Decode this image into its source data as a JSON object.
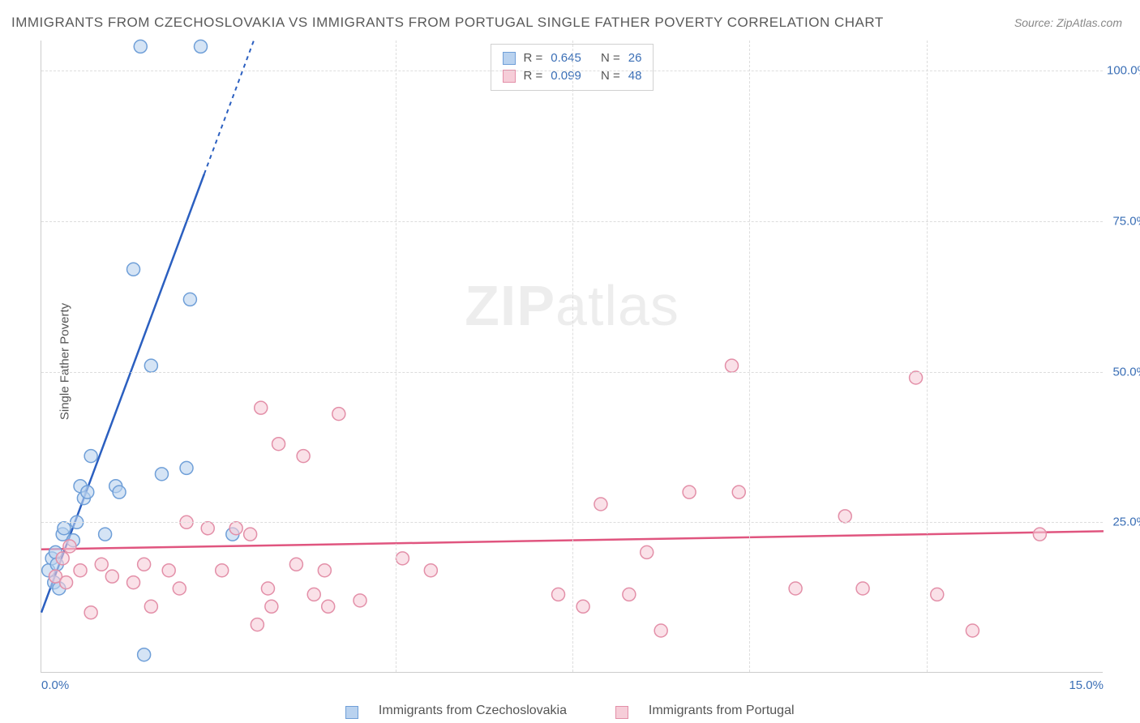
{
  "title": "IMMIGRANTS FROM CZECHOSLOVAKIA VS IMMIGRANTS FROM PORTUGAL SINGLE FATHER POVERTY CORRELATION CHART",
  "source": "Source: ZipAtlas.com",
  "ylabel": "Single Father Poverty",
  "watermark_a": "ZIP",
  "watermark_b": "atlas",
  "chart": {
    "type": "scatter",
    "background_color": "#ffffff",
    "grid_color": "#dddddd",
    "axis_color": "#cccccc",
    "tick_color": "#3b6fb6",
    "label_color": "#555555",
    "xlim": [
      0,
      15
    ],
    "ylim": [
      0,
      105
    ],
    "yticks": [
      25,
      50,
      75,
      100
    ],
    "ytick_labels": [
      "25.0%",
      "50.0%",
      "75.0%",
      "100.0%"
    ],
    "xticks_minor": [
      5,
      7.5,
      10,
      12.5
    ],
    "xtick_left": "0.0%",
    "xtick_right": "15.0%",
    "marker_radius": 8,
    "marker_stroke": 1.5
  },
  "series": [
    {
      "name": "Immigrants from Czechoslovakia",
      "color_fill": "#b9d2ef",
      "color_stroke": "#6f9fd8",
      "line_color": "#2b5fc0",
      "R": "0.645",
      "N": "26",
      "trend": {
        "x1": 0,
        "y1": 10,
        "x2": 3.0,
        "y2": 105,
        "dash_after_x": 2.3
      },
      "points": [
        [
          0.1,
          17
        ],
        [
          0.15,
          19
        ],
        [
          0.18,
          15
        ],
        [
          0.2,
          20
        ],
        [
          0.22,
          18
        ],
        [
          0.25,
          14
        ],
        [
          0.3,
          23
        ],
        [
          0.32,
          24
        ],
        [
          0.45,
          22
        ],
        [
          0.5,
          25
        ],
        [
          0.55,
          31
        ],
        [
          0.6,
          29
        ],
        [
          0.65,
          30
        ],
        [
          0.7,
          36
        ],
        [
          0.9,
          23
        ],
        [
          1.05,
          31
        ],
        [
          1.1,
          30
        ],
        [
          1.3,
          67
        ],
        [
          1.4,
          104
        ],
        [
          1.45,
          3
        ],
        [
          1.55,
          51
        ],
        [
          1.7,
          33
        ],
        [
          2.05,
          34
        ],
        [
          2.1,
          62
        ],
        [
          2.25,
          104
        ],
        [
          2.7,
          23
        ]
      ]
    },
    {
      "name": "Immigrants from Portugal",
      "color_fill": "#f6cdd8",
      "color_stroke": "#e38fa8",
      "line_color": "#e0557f",
      "R": "0.099",
      "N": "48",
      "trend": {
        "x1": 0,
        "y1": 20.5,
        "x2": 15,
        "y2": 23.5
      },
      "points": [
        [
          0.2,
          16
        ],
        [
          0.3,
          19
        ],
        [
          0.35,
          15
        ],
        [
          0.4,
          21
        ],
        [
          0.55,
          17
        ],
        [
          0.7,
          10
        ],
        [
          0.85,
          18
        ],
        [
          1.0,
          16
        ],
        [
          1.3,
          15
        ],
        [
          1.45,
          18
        ],
        [
          1.55,
          11
        ],
        [
          1.8,
          17
        ],
        [
          1.95,
          14
        ],
        [
          2.05,
          25
        ],
        [
          2.35,
          24
        ],
        [
          2.55,
          17
        ],
        [
          2.75,
          24
        ],
        [
          2.95,
          23
        ],
        [
          3.05,
          8
        ],
        [
          3.1,
          44
        ],
        [
          3.2,
          14
        ],
        [
          3.25,
          11
        ],
        [
          3.35,
          38
        ],
        [
          3.6,
          18
        ],
        [
          3.7,
          36
        ],
        [
          3.85,
          13
        ],
        [
          4.0,
          17
        ],
        [
          4.05,
          11
        ],
        [
          4.2,
          43
        ],
        [
          4.5,
          12
        ],
        [
          5.1,
          19
        ],
        [
          5.5,
          17
        ],
        [
          7.3,
          13
        ],
        [
          7.65,
          11
        ],
        [
          7.9,
          28
        ],
        [
          8.3,
          13
        ],
        [
          8.55,
          20
        ],
        [
          8.75,
          7
        ],
        [
          9.15,
          30
        ],
        [
          9.75,
          51
        ],
        [
          9.85,
          30
        ],
        [
          10.65,
          14
        ],
        [
          11.35,
          26
        ],
        [
          11.6,
          14
        ],
        [
          12.35,
          49
        ],
        [
          12.65,
          13
        ],
        [
          13.15,
          7
        ],
        [
          14.1,
          23
        ]
      ]
    }
  ],
  "legend_top": {
    "r_label": "R =",
    "n_label": "N ="
  },
  "legend_bottom": [
    "Immigrants from Czechoslovakia",
    "Immigrants from Portugal"
  ]
}
